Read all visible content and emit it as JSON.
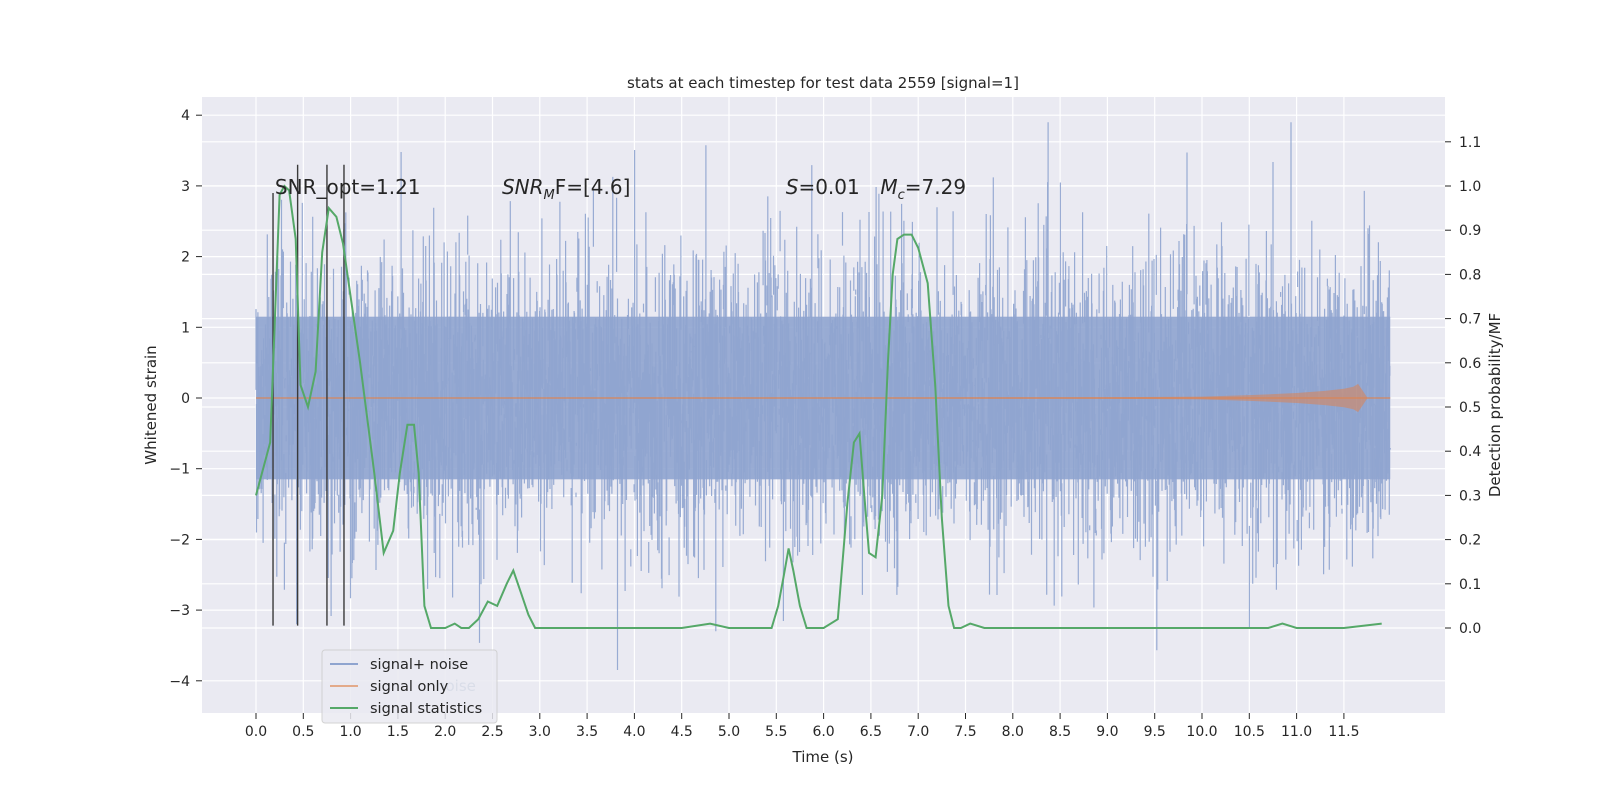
{
  "chart_data": {
    "type": "line",
    "title": "stats at each timestep for test data 2559 [signal=1]",
    "xlabel": "Time (s)",
    "ylabel": "Whitened strain",
    "ylabel_right": "Detection probability/MF",
    "xlim": [
      -0.57,
      12.57
    ],
    "ylim": [
      -4.4,
      4.3
    ],
    "ylim_right": [
      -0.2,
      1.2
    ],
    "x_ticks": [
      0.0,
      0.5,
      1.0,
      1.5,
      2.0,
      2.5,
      3.0,
      3.5,
      4.0,
      4.5,
      5.0,
      5.5,
      6.0,
      6.5,
      7.0,
      7.5,
      8.0,
      8.5,
      9.0,
      9.5,
      10.0,
      10.5,
      11.0,
      11.5
    ],
    "x_tick_labels": [
      "0.0",
      "0.5",
      "1.0",
      "1.5",
      "2.0",
      "2.5",
      "3.0",
      "3.5",
      "4.0",
      "4.5",
      "5.0",
      "5.5",
      "6.0",
      "6.5",
      "7.0",
      "7.5",
      "8.0",
      "8.5",
      "9.0",
      "9.5",
      "10.0",
      "10.5",
      "11.0",
      "11.5"
    ],
    "y_ticks": [
      -4,
      -3,
      -2,
      -1,
      0,
      1,
      2,
      3,
      4
    ],
    "y_tick_labels": [
      "−4",
      "−3",
      "−2",
      "−1",
      "0",
      "1",
      "2",
      "3",
      "4"
    ],
    "y_ticks_right": [
      0.0,
      0.1,
      0.2,
      0.3,
      0.4,
      0.5,
      0.6,
      0.7,
      0.8,
      0.9,
      1.0,
      1.1
    ],
    "y_tick_labels_right": [
      "0.0",
      "0.1",
      "0.2",
      "0.3",
      "0.4",
      "0.5",
      "0.6",
      "0.7",
      "0.8",
      "0.9",
      "1.0",
      "1.1"
    ],
    "grid": true,
    "legend_position": "lower-left",
    "series": [
      {
        "name": "signal+ noise",
        "color": "#8fa4cf",
        "description_range": [
          -4.1,
          3.9
        ],
        "x_range": [
          0.0,
          11.99
        ]
      },
      {
        "name": "signal only",
        "color": "#dd8452",
        "x": [
          0.0,
          6.0,
          9.0,
          10.0,
          10.5,
          11.0,
          11.3,
          11.5,
          11.6,
          11.65,
          11.7,
          11.75,
          11.99
        ],
        "amplitude": [
          0.0,
          0.005,
          0.01,
          0.02,
          0.04,
          0.07,
          0.1,
          0.13,
          0.16,
          0.2,
          0.1,
          0.0,
          0.0
        ]
      },
      {
        "name": "signal statistics",
        "color": "#55a868",
        "axis": "right",
        "x": [
          0.0,
          0.15,
          0.25,
          0.3,
          0.35,
          0.42,
          0.47,
          0.55,
          0.63,
          0.7,
          0.77,
          0.85,
          0.92,
          1.0,
          1.1,
          1.25,
          1.35,
          1.45,
          1.52,
          1.6,
          1.67,
          1.72,
          1.78,
          1.85,
          1.93,
          2.0,
          2.1,
          2.17,
          2.25,
          2.35,
          2.45,
          2.55,
          2.65,
          2.72,
          2.8,
          2.88,
          2.95,
          3.02,
          3.1,
          3.2,
          3.5,
          4.0,
          4.5,
          4.8,
          5.0,
          5.3,
          5.45,
          5.52,
          5.58,
          5.63,
          5.68,
          5.75,
          5.82,
          5.9,
          6.0,
          6.15,
          6.25,
          6.32,
          6.38,
          6.43,
          6.48,
          6.55,
          6.62,
          6.68,
          6.73,
          6.78,
          6.85,
          6.93,
          7.0,
          7.1,
          7.18,
          7.25,
          7.32,
          7.38,
          7.45,
          7.55,
          7.7,
          7.85,
          8.0,
          9.0,
          10.0,
          10.7,
          10.85,
          11.0,
          11.5,
          11.9
        ],
        "y": [
          0.3,
          0.42,
          0.98,
          1.0,
          0.99,
          0.88,
          0.55,
          0.5,
          0.58,
          0.85,
          0.95,
          0.93,
          0.87,
          0.75,
          0.6,
          0.35,
          0.17,
          0.22,
          0.35,
          0.46,
          0.46,
          0.35,
          0.05,
          0.0,
          0.0,
          0.0,
          0.01,
          0.0,
          0.0,
          0.02,
          0.06,
          0.05,
          0.1,
          0.13,
          0.08,
          0.03,
          0.0,
          0.0,
          0.0,
          0.0,
          0.0,
          0.0,
          0.0,
          0.01,
          0.0,
          0.0,
          0.0,
          0.05,
          0.12,
          0.18,
          0.13,
          0.05,
          0.0,
          0.0,
          0.0,
          0.02,
          0.28,
          0.42,
          0.44,
          0.3,
          0.17,
          0.16,
          0.3,
          0.6,
          0.8,
          0.88,
          0.89,
          0.89,
          0.86,
          0.78,
          0.55,
          0.25,
          0.05,
          0.0,
          0.0,
          0.01,
          0.0,
          0.0,
          0.0,
          0.0,
          0.0,
          0.0,
          0.01,
          0.0,
          0.0,
          0.01
        ]
      }
    ],
    "vertical_lines": {
      "color": "#3a3a3a",
      "x": [
        0.18,
        0.44,
        0.75,
        0.93
      ],
      "top": [
        2.9,
        3.3,
        3.3,
        3.3
      ],
      "bottom": [
        -3.22,
        -3.22,
        -3.22,
        -3.22
      ]
    },
    "annotations": [
      {
        "text": "SNR_opt=1.21",
        "x": 0.2,
        "y": 3.0
      },
      {
        "text_main": "SNR",
        "text_sub": "M",
        "text_rest": "F=[4.6]",
        "x": 2.6,
        "y": 3.0
      },
      {
        "text_main": "S",
        "text_rest": "=0.01",
        "x": 5.6,
        "y": 3.0
      },
      {
        "text_main": "M",
        "text_sub": "c",
        "text_rest": "=7.29",
        "x": 6.6,
        "y": 3.0
      }
    ],
    "legend_ghost_text": "noise",
    "legend": [
      "signal+ noise",
      "signal only",
      "signal statistics"
    ]
  }
}
